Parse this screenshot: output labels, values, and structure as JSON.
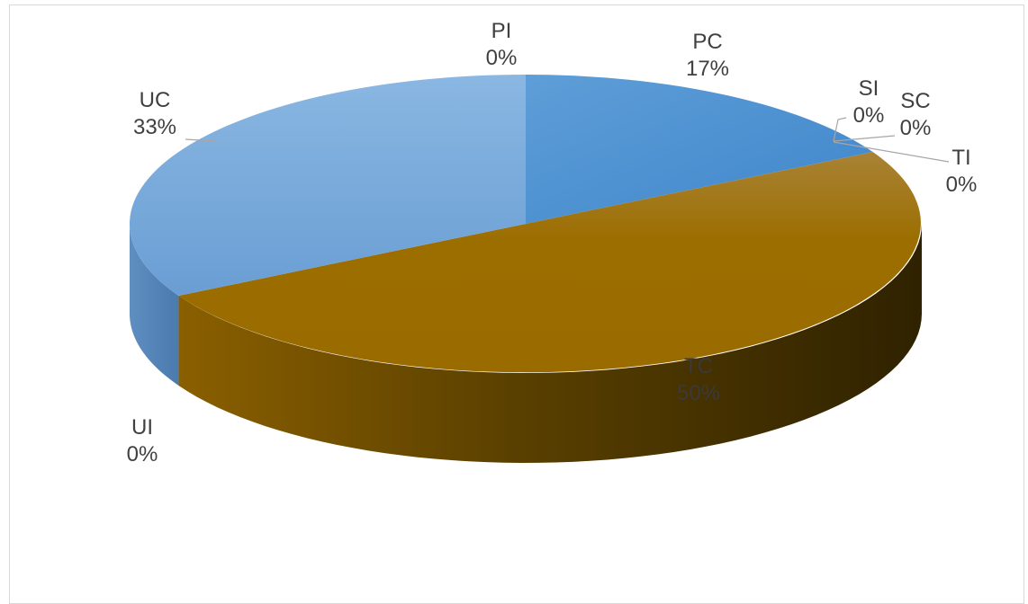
{
  "chart_data": {
    "type": "pie",
    "style": "3d",
    "title": "",
    "categories": [
      "PI",
      "PC",
      "SI",
      "SC",
      "TI",
      "TC",
      "UI",
      "UC"
    ],
    "values": [
      0,
      17,
      0,
      0,
      0,
      50,
      0,
      33
    ],
    "value_labels": [
      "0%",
      "17%",
      "0%",
      "0%",
      "0%",
      "50%",
      "0%",
      "33%"
    ],
    "colors": {
      "PC": "#5b9bd5",
      "UC": "#7fb0df",
      "TC": "#9c6e00"
    },
    "legend": "none",
    "data_labels": "category and percentage"
  }
}
